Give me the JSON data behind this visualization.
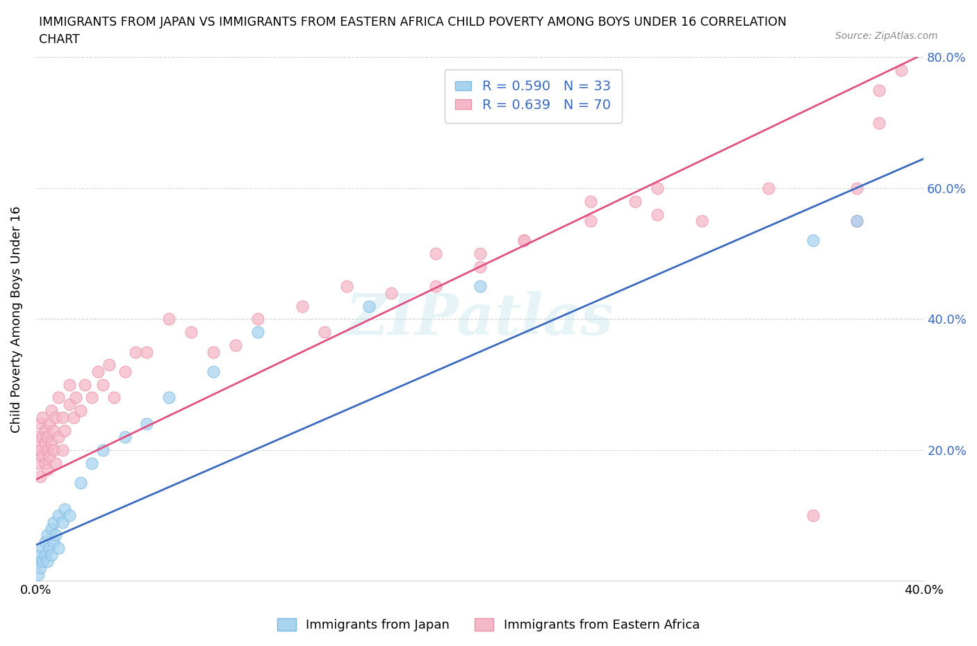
{
  "title_line1": "IMMIGRANTS FROM JAPAN VS IMMIGRANTS FROM EASTERN AFRICA CHILD POVERTY AMONG BOYS UNDER 16 CORRELATION",
  "title_line2": "CHART",
  "source": "Source: ZipAtlas.com",
  "ylabel": "Child Poverty Among Boys Under 16",
  "xlim": [
    0,
    0.4
  ],
  "ylim": [
    0,
    0.8
  ],
  "japan_color": "#a8d4f0",
  "japan_edge_color": "#7ab8e0",
  "eastern_africa_color": "#f5b8c8",
  "eastern_africa_edge_color": "#e890a8",
  "japan_R": 0.59,
  "japan_N": 33,
  "eastern_africa_R": 0.639,
  "eastern_africa_N": 70,
  "japan_line_color": "#3a6abf",
  "eastern_africa_line_color": "#e05080",
  "legend_R_N_color": "#3a6abf",
  "watermark": "ZIPatlas",
  "japan_line_x0": 0.0,
  "japan_line_y0": 0.055,
  "japan_line_x1": 0.4,
  "japan_line_y1": 0.645,
  "ea_line_x0": 0.0,
  "ea_line_y0": 0.155,
  "ea_line_x1": 0.4,
  "ea_line_y1": 0.805,
  "japan_x": [
    0.001,
    0.001,
    0.002,
    0.002,
    0.003,
    0.003,
    0.004,
    0.004,
    0.005,
    0.005,
    0.006,
    0.007,
    0.007,
    0.008,
    0.008,
    0.009,
    0.01,
    0.01,
    0.012,
    0.013,
    0.015,
    0.02,
    0.025,
    0.03,
    0.04,
    0.05,
    0.06,
    0.08,
    0.1,
    0.15,
    0.2,
    0.35,
    0.37
  ],
  "japan_y": [
    0.01,
    0.03,
    0.02,
    0.04,
    0.03,
    0.05,
    0.04,
    0.06,
    0.03,
    0.07,
    0.05,
    0.04,
    0.08,
    0.06,
    0.09,
    0.07,
    0.05,
    0.1,
    0.09,
    0.11,
    0.1,
    0.15,
    0.18,
    0.2,
    0.22,
    0.24,
    0.28,
    0.32,
    0.38,
    0.42,
    0.45,
    0.52,
    0.55
  ],
  "ea_x": [
    0.001,
    0.001,
    0.001,
    0.002,
    0.002,
    0.002,
    0.003,
    0.003,
    0.003,
    0.004,
    0.004,
    0.004,
    0.005,
    0.005,
    0.005,
    0.006,
    0.006,
    0.007,
    0.007,
    0.008,
    0.008,
    0.009,
    0.009,
    0.01,
    0.01,
    0.012,
    0.012,
    0.013,
    0.015,
    0.015,
    0.017,
    0.018,
    0.02,
    0.022,
    0.025,
    0.028,
    0.03,
    0.033,
    0.035,
    0.04,
    0.045,
    0.05,
    0.06,
    0.07,
    0.08,
    0.09,
    0.1,
    0.12,
    0.13,
    0.14,
    0.16,
    0.18,
    0.2,
    0.22,
    0.25,
    0.27,
    0.28,
    0.3,
    0.33,
    0.35,
    0.37,
    0.37,
    0.38,
    0.38,
    0.39,
    0.28,
    0.25,
    0.22,
    0.2,
    0.18
  ],
  "ea_y": [
    0.18,
    0.2,
    0.22,
    0.16,
    0.2,
    0.24,
    0.19,
    0.22,
    0.25,
    0.18,
    0.21,
    0.23,
    0.2,
    0.17,
    0.22,
    0.19,
    0.24,
    0.21,
    0.26,
    0.2,
    0.23,
    0.18,
    0.25,
    0.22,
    0.28,
    0.2,
    0.25,
    0.23,
    0.27,
    0.3,
    0.25,
    0.28,
    0.26,
    0.3,
    0.28,
    0.32,
    0.3,
    0.33,
    0.28,
    0.32,
    0.35,
    0.35,
    0.4,
    0.38,
    0.35,
    0.36,
    0.4,
    0.42,
    0.38,
    0.45,
    0.44,
    0.5,
    0.48,
    0.52,
    0.55,
    0.58,
    0.56,
    0.55,
    0.6,
    0.1,
    0.55,
    0.6,
    0.7,
    0.75,
    0.78,
    0.6,
    0.58,
    0.52,
    0.5,
    0.45
  ]
}
